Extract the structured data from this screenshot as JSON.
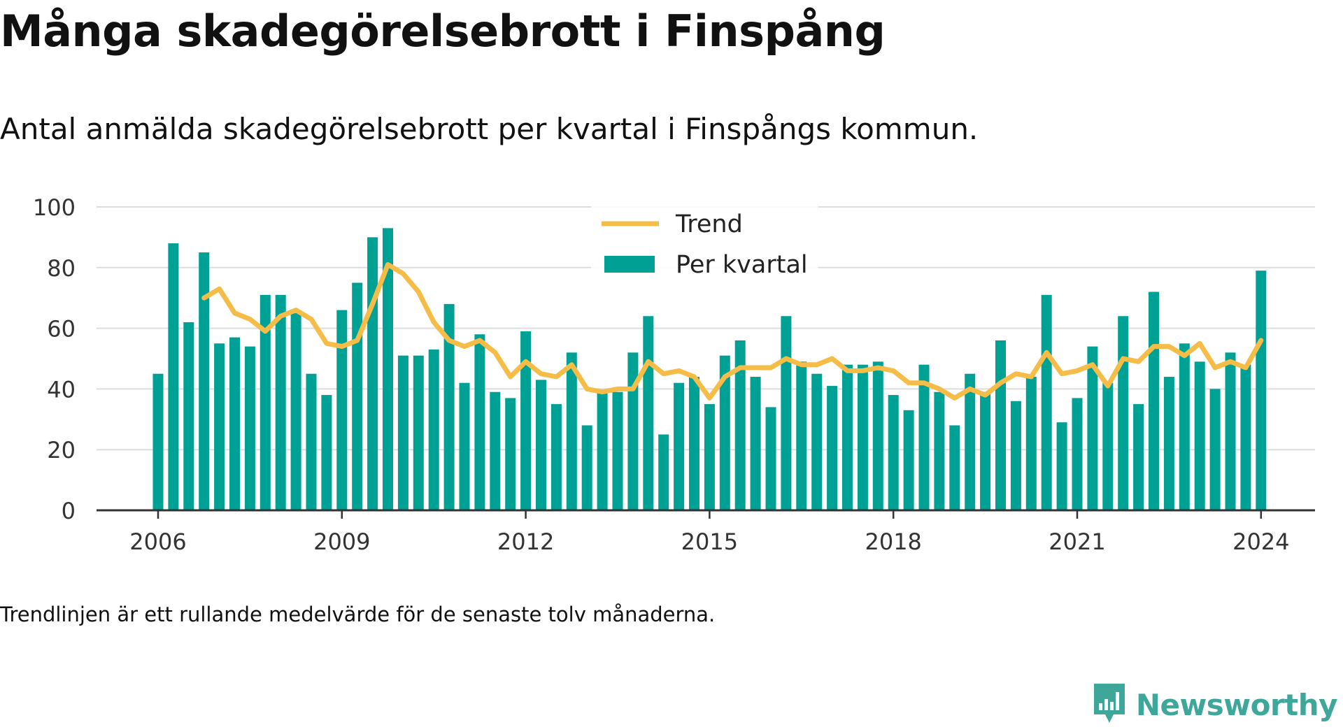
{
  "title": "Många skadegörelsebrott i Finspång",
  "subtitle": "Antal anmälda skadegörelsebrott per kvartal i Finspångs kommun.",
  "footnote": "Trendlinjen är ett rullande medelvärde för de senaste tolv månaderna.",
  "brand": {
    "name": "Newsworthy"
  },
  "colors": {
    "bars": "#00a195",
    "trend": "#f5bd48",
    "grid": "#dddddd",
    "axis": "#333333",
    "brand": "#3fa79a"
  },
  "chart_data": {
    "type": "bar",
    "legend": [
      "Trend",
      "Per kvartal"
    ],
    "legend_position": "top-center",
    "grid": true,
    "ylim": [
      0,
      100
    ],
    "y_ticks": [
      "0",
      "20",
      "40",
      "60",
      "80",
      "100"
    ],
    "x_ticks": [
      "2006",
      "2009",
      "2012",
      "2015",
      "2018",
      "2021",
      "2024"
    ],
    "categories": [
      "2006 Q1",
      "2006 Q2",
      "2006 Q3",
      "2006 Q4",
      "2007 Q1",
      "2007 Q2",
      "2007 Q3",
      "2007 Q4",
      "2008 Q1",
      "2008 Q2",
      "2008 Q3",
      "2008 Q4",
      "2009 Q1",
      "2009 Q2",
      "2009 Q3",
      "2009 Q4",
      "2010 Q1",
      "2010 Q2",
      "2010 Q3",
      "2010 Q4",
      "2011 Q1",
      "2011 Q2",
      "2011 Q3",
      "2011 Q4",
      "2012 Q1",
      "2012 Q2",
      "2012 Q3",
      "2012 Q4",
      "2013 Q1",
      "2013 Q2",
      "2013 Q3",
      "2013 Q4",
      "2014 Q1",
      "2014 Q2",
      "2014 Q3",
      "2014 Q4",
      "2015 Q1",
      "2015 Q2",
      "2015 Q3",
      "2015 Q4",
      "2016 Q1",
      "2016 Q2",
      "2016 Q3",
      "2016 Q4",
      "2017 Q1",
      "2017 Q2",
      "2017 Q3",
      "2017 Q4",
      "2018 Q1",
      "2018 Q2",
      "2018 Q3",
      "2018 Q4",
      "2019 Q1",
      "2019 Q2",
      "2019 Q3",
      "2019 Q4",
      "2020 Q1",
      "2020 Q2",
      "2020 Q3",
      "2020 Q4",
      "2021 Q1",
      "2021 Q2",
      "2021 Q3",
      "2021 Q4",
      "2022 Q1",
      "2022 Q2",
      "2022 Q3",
      "2022 Q4",
      "2023 Q1",
      "2023 Q2",
      "2023 Q3",
      "2023 Q4",
      "2024 Q1"
    ],
    "series": [
      {
        "name": "Per kvartal",
        "type": "bar",
        "values": [
          45,
          88,
          62,
          85,
          55,
          57,
          54,
          71,
          71,
          65,
          45,
          38,
          66,
          75,
          90,
          93,
          51,
          51,
          53,
          68,
          42,
          58,
          39,
          37,
          59,
          43,
          35,
          52,
          28,
          39,
          39,
          52,
          64,
          25,
          42,
          44,
          35,
          51,
          56,
          44,
          34,
          64,
          49,
          45,
          41,
          48,
          48,
          49,
          38,
          33,
          48,
          39,
          28,
          45,
          39,
          56,
          36,
          44,
          71,
          29,
          37,
          54,
          42,
          64,
          35,
          72,
          44,
          55,
          49,
          40,
          52,
          48,
          79
        ]
      },
      {
        "name": "Trend",
        "type": "line",
        "values": [
          null,
          null,
          null,
          70,
          73,
          65,
          63,
          59,
          64,
          66,
          63,
          55,
          54,
          56,
          68,
          81,
          78,
          72,
          62,
          56,
          54,
          56,
          52,
          44,
          49,
          45,
          44,
          48,
          40,
          39,
          40,
          40,
          49,
          45,
          46,
          44,
          37,
          44,
          47,
          47,
          47,
          50,
          48,
          48,
          50,
          46,
          46,
          47,
          46,
          42,
          42,
          40,
          37,
          40,
          38,
          42,
          45,
          44,
          52,
          45,
          46,
          48,
          41,
          50,
          49,
          54,
          54,
          51,
          55,
          47,
          49,
          47,
          56
        ]
      }
    ]
  }
}
